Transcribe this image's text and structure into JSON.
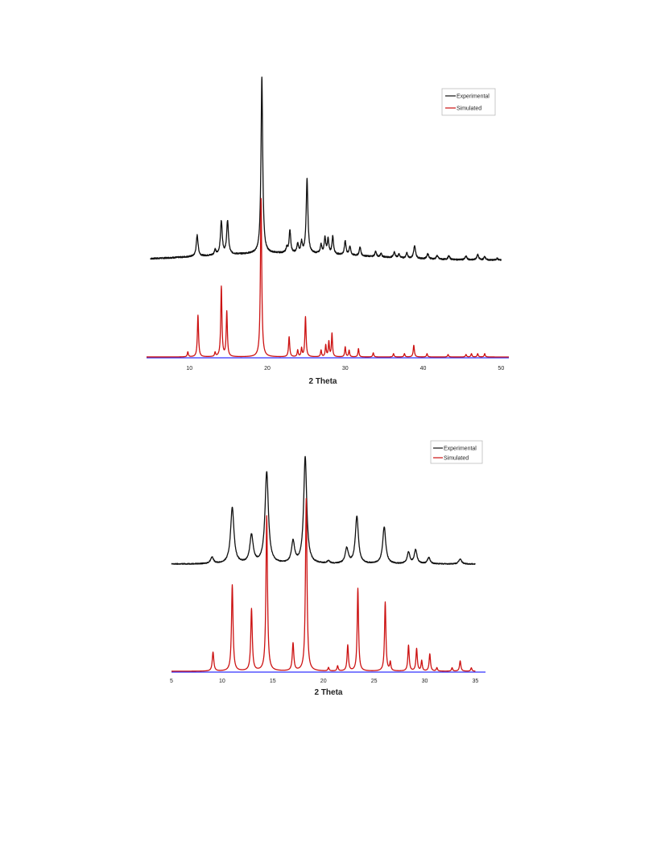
{
  "chart_data": [
    {
      "type": "line",
      "xlabel": "2 Theta",
      "xlim": [
        4.5,
        51
      ],
      "x_ticks": [
        10,
        20,
        30,
        40,
        50
      ],
      "baseline_color": "#3333ff",
      "legend": {
        "placement": "top-right",
        "entries": [
          "Experimental",
          "Simulated"
        ]
      },
      "series": [
        {
          "name": "Experimental",
          "color": "#111111",
          "range": [
            5,
            50
          ],
          "background": 0.04,
          "peaks": [
            [
              11.0,
              0.12,
              0.14
            ],
            [
              13.3,
              0.03,
              0.12
            ],
            [
              14.1,
              0.19,
              0.14
            ],
            [
              14.9,
              0.19,
              0.14
            ],
            [
              19.3,
              1.0,
              0.13
            ],
            [
              22.5,
              0.03,
              0.12
            ],
            [
              22.9,
              0.13,
              0.12
            ],
            [
              23.9,
              0.05,
              0.12
            ],
            [
              24.4,
              0.06,
              0.12
            ],
            [
              25.1,
              0.42,
              0.13
            ],
            [
              26.9,
              0.05,
              0.12
            ],
            [
              27.4,
              0.09,
              0.12
            ],
            [
              27.8,
              0.08,
              0.12
            ],
            [
              28.4,
              0.1,
              0.12
            ],
            [
              30.0,
              0.08,
              0.12
            ],
            [
              30.6,
              0.05,
              0.12
            ],
            [
              31.9,
              0.05,
              0.12
            ],
            [
              33.9,
              0.03,
              0.12
            ],
            [
              34.6,
              0.02,
              0.12
            ],
            [
              36.3,
              0.03,
              0.14
            ],
            [
              36.9,
              0.02,
              0.12
            ],
            [
              37.9,
              0.03,
              0.12
            ],
            [
              38.9,
              0.07,
              0.15
            ],
            [
              40.6,
              0.03,
              0.14
            ],
            [
              41.8,
              0.02,
              0.14
            ],
            [
              43.3,
              0.02,
              0.14
            ],
            [
              45.5,
              0.02,
              0.14
            ],
            [
              47.0,
              0.03,
              0.14
            ],
            [
              47.9,
              0.02,
              0.12
            ],
            [
              49.5,
              0.01,
              0.12
            ]
          ]
        },
        {
          "name": "Simulated",
          "color": "#cc1111",
          "range": [
            4.5,
            51
          ],
          "background": 0.0,
          "peaks": [
            [
              9.8,
              0.03,
              0.08
            ],
            [
              11.1,
              0.25,
              0.09
            ],
            [
              13.3,
              0.025,
              0.08
            ],
            [
              14.1,
              0.42,
              0.09
            ],
            [
              14.8,
              0.27,
              0.09
            ],
            [
              19.2,
              0.95,
              0.1
            ],
            [
              22.8,
              0.12,
              0.09
            ],
            [
              23.9,
              0.04,
              0.08
            ],
            [
              24.4,
              0.05,
              0.08
            ],
            [
              24.9,
              0.24,
              0.09
            ],
            [
              26.9,
              0.04,
              0.08
            ],
            [
              27.5,
              0.07,
              0.08
            ],
            [
              27.9,
              0.09,
              0.08
            ],
            [
              28.3,
              0.14,
              0.08
            ],
            [
              30.0,
              0.06,
              0.08
            ],
            [
              30.5,
              0.04,
              0.08
            ],
            [
              31.7,
              0.05,
              0.08
            ],
            [
              33.6,
              0.025,
              0.08
            ],
            [
              36.2,
              0.02,
              0.08
            ],
            [
              37.6,
              0.02,
              0.08
            ],
            [
              38.8,
              0.07,
              0.09
            ],
            [
              40.5,
              0.02,
              0.08
            ],
            [
              43.2,
              0.015,
              0.08
            ],
            [
              45.5,
              0.015,
              0.08
            ],
            [
              46.2,
              0.02,
              0.08
            ],
            [
              47.0,
              0.02,
              0.08
            ],
            [
              47.9,
              0.02,
              0.08
            ]
          ]
        }
      ]
    },
    {
      "type": "line",
      "xlabel": "2 Theta",
      "xlim": [
        5,
        36
      ],
      "x_ticks": [
        5,
        10,
        15,
        20,
        25,
        30,
        35
      ],
      "baseline_color": "#3333ff",
      "legend": {
        "placement": "top-right",
        "entries": [
          "Experimental",
          "Simulated"
        ]
      },
      "series": [
        {
          "name": "Experimental",
          "color": "#111111",
          "range": [
            5,
            35
          ],
          "background": 0.0,
          "peaks": [
            [
              9.0,
              0.05,
              0.18
            ],
            [
              11.0,
              0.44,
              0.2
            ],
            [
              12.9,
              0.22,
              0.2
            ],
            [
              14.4,
              0.72,
              0.2
            ],
            [
              17.0,
              0.17,
              0.18
            ],
            [
              18.2,
              0.84,
              0.18
            ],
            [
              20.5,
              0.02,
              0.15
            ],
            [
              22.3,
              0.12,
              0.18
            ],
            [
              23.3,
              0.37,
              0.18
            ],
            [
              26.0,
              0.29,
              0.18
            ],
            [
              28.4,
              0.09,
              0.16
            ],
            [
              29.1,
              0.11,
              0.16
            ],
            [
              30.4,
              0.05,
              0.16
            ],
            [
              33.5,
              0.04,
              0.16
            ]
          ]
        },
        {
          "name": "Simulated",
          "color": "#cc1111",
          "range": [
            5,
            35
          ],
          "background": 0.0,
          "peaks": [
            [
              9.1,
              0.11,
              0.09
            ],
            [
              11.0,
              0.5,
              0.09
            ],
            [
              12.9,
              0.36,
              0.09
            ],
            [
              14.4,
              0.9,
              0.09
            ],
            [
              17.0,
              0.16,
              0.09
            ],
            [
              18.3,
              1.0,
              0.09
            ],
            [
              20.5,
              0.02,
              0.07
            ],
            [
              21.4,
              0.03,
              0.07
            ],
            [
              22.4,
              0.15,
              0.08
            ],
            [
              23.4,
              0.48,
              0.08
            ],
            [
              26.1,
              0.4,
              0.08
            ],
            [
              26.6,
              0.05,
              0.07
            ],
            [
              28.4,
              0.15,
              0.08
            ],
            [
              29.2,
              0.13,
              0.08
            ],
            [
              29.7,
              0.06,
              0.07
            ],
            [
              30.5,
              0.1,
              0.08
            ],
            [
              31.2,
              0.02,
              0.07
            ],
            [
              32.7,
              0.02,
              0.07
            ],
            [
              33.5,
              0.06,
              0.08
            ],
            [
              34.6,
              0.02,
              0.07
            ]
          ]
        }
      ]
    }
  ]
}
